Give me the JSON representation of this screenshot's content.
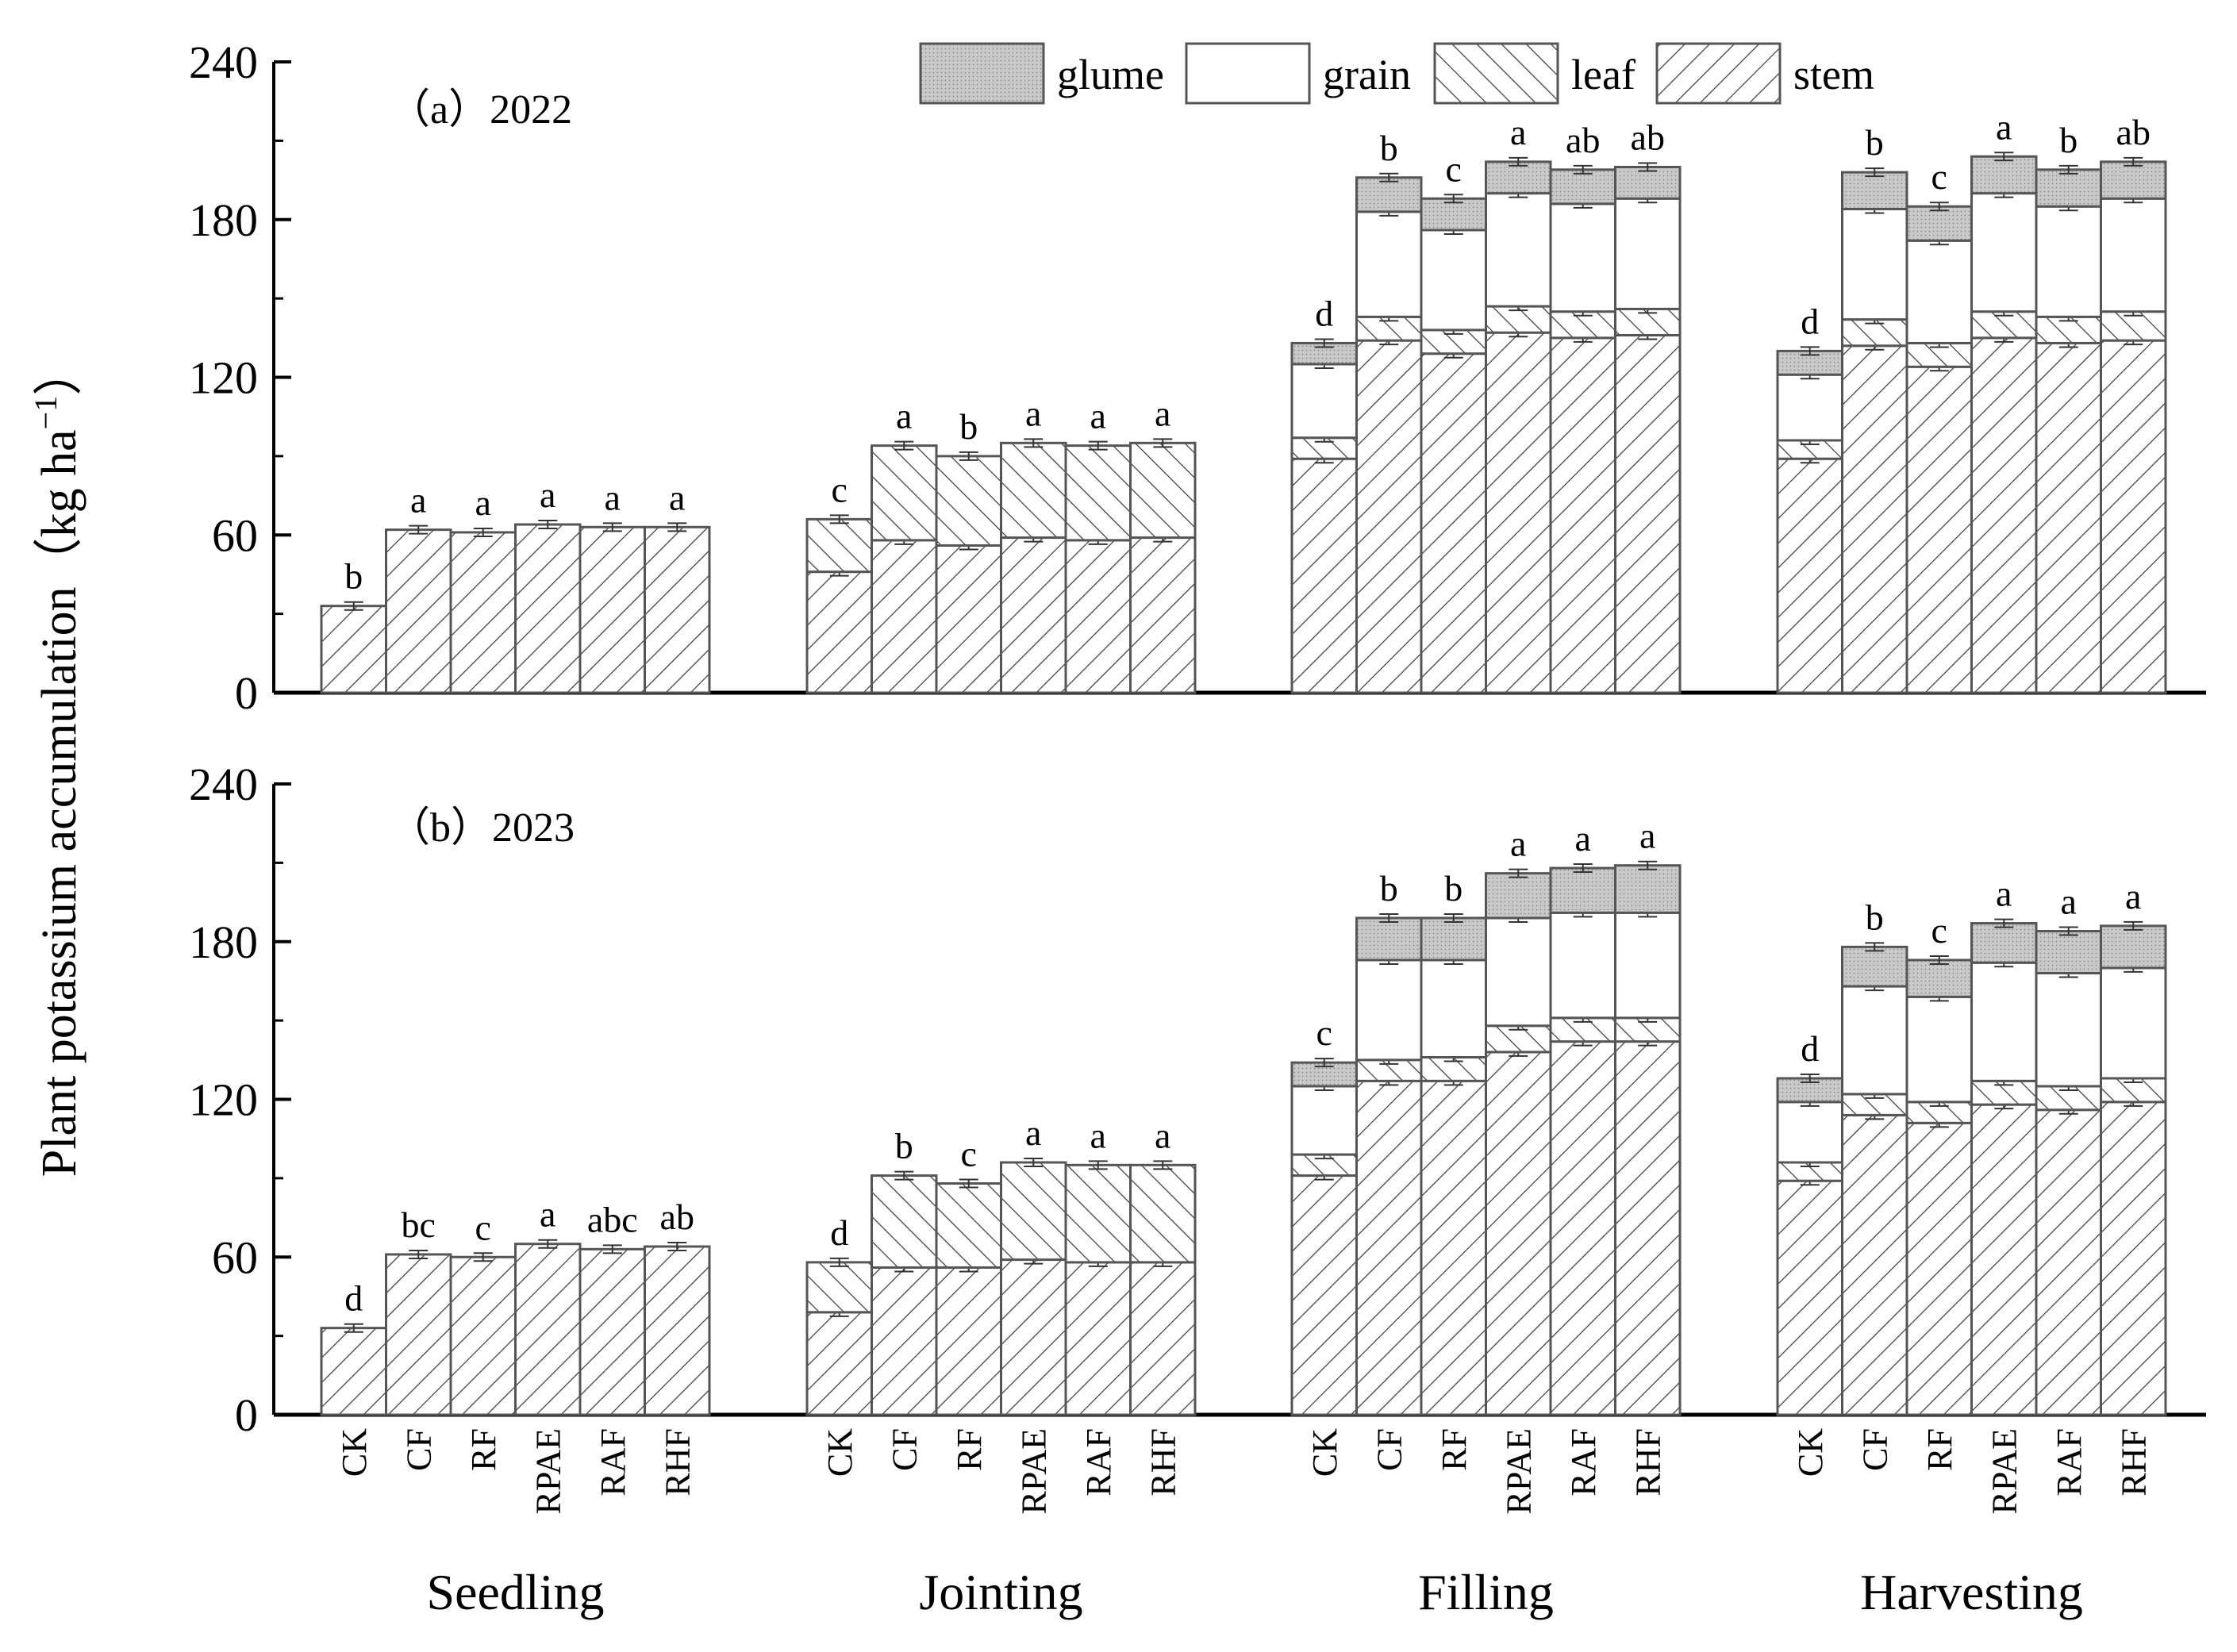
{
  "chart_data": {
    "type": "bar",
    "subtype": "stacked",
    "ylabel_main": "Plant potassium accumulation",
    "ylabel_unit_open": "（kg ha",
    "ylabel_unit_sup": "−1",
    "ylabel_unit_close": "）",
    "ylim": [
      0,
      240
    ],
    "yticks": [
      0,
      60,
      120,
      180,
      240
    ],
    "treatments": [
      "CK",
      "CF",
      "RF",
      "RPAE",
      "RAF",
      "RHF"
    ],
    "stages": [
      "Seedling",
      "Jointing",
      "Filling",
      "Harvesting"
    ],
    "legend": [
      {
        "name": "glume",
        "fill": "#c8c8c8",
        "pattern": "dotted"
      },
      {
        "name": "grain",
        "fill": "#ffffff",
        "pattern": "none"
      },
      {
        "name": "leaf",
        "fill": "#ffffff",
        "pattern": "hatch-back"
      },
      {
        "name": "stem",
        "fill": "#ffffff",
        "pattern": "hatch-forward"
      }
    ],
    "series_order": [
      "stem",
      "leaf",
      "grain",
      "glume"
    ],
    "panels": [
      {
        "label": "（a）2022",
        "groups": [
          {
            "stage": "Seedling",
            "stem": [
              33,
              62,
              61,
              64,
              63,
              63
            ],
            "leaf": [
              0,
              0,
              0,
              0,
              0,
              0
            ],
            "grain": [
              0,
              0,
              0,
              0,
              0,
              0
            ],
            "glume": [
              0,
              0,
              0,
              0,
              0,
              0
            ],
            "sig": [
              "b",
              "a",
              "a",
              "a",
              "a",
              "a"
            ]
          },
          {
            "stage": "Jointing",
            "stem": [
              46,
              58,
              56,
              59,
              58,
              59
            ],
            "leaf": [
              20,
              36,
              34,
              36,
              36,
              36
            ],
            "grain": [
              0,
              0,
              0,
              0,
              0,
              0
            ],
            "glume": [
              0,
              0,
              0,
              0,
              0,
              0
            ],
            "sig": [
              "c",
              "a",
              "b",
              "a",
              "a",
              "a"
            ]
          },
          {
            "stage": "Filling",
            "stem": [
              89,
              134,
              129,
              137,
              135,
              136
            ],
            "leaf": [
              8,
              9,
              9,
              10,
              10,
              10
            ],
            "grain": [
              28,
              40,
              38,
              43,
              41,
              42
            ],
            "glume": [
              8,
              13,
              12,
              12,
              13,
              12
            ],
            "sig": [
              "d",
              "b",
              "c",
              "a",
              "ab",
              "ab"
            ]
          },
          {
            "stage": "Harvesting",
            "stem": [
              89,
              132,
              124,
              135,
              133,
              134
            ],
            "leaf": [
              7,
              10,
              9,
              10,
              10,
              11
            ],
            "grain": [
              25,
              42,
              39,
              45,
              42,
              43
            ],
            "glume": [
              9,
              14,
              13,
              14,
              14,
              14
            ],
            "sig": [
              "d",
              "b",
              "c",
              "a",
              "b",
              "ab"
            ]
          }
        ]
      },
      {
        "label": "（b）2023",
        "groups": [
          {
            "stage": "Seedling",
            "stem": [
              33,
              61,
              60,
              65,
              63,
              64
            ],
            "leaf": [
              0,
              0,
              0,
              0,
              0,
              0
            ],
            "grain": [
              0,
              0,
              0,
              0,
              0,
              0
            ],
            "glume": [
              0,
              0,
              0,
              0,
              0,
              0
            ],
            "sig": [
              "d",
              "bc",
              "c",
              "a",
              "abc",
              "ab"
            ]
          },
          {
            "stage": "Jointing",
            "stem": [
              39,
              56,
              56,
              59,
              58,
              58
            ],
            "leaf": [
              19,
              35,
              32,
              37,
              37,
              37
            ],
            "grain": [
              0,
              0,
              0,
              0,
              0,
              0
            ],
            "glume": [
              0,
              0,
              0,
              0,
              0,
              0
            ],
            "sig": [
              "d",
              "b",
              "c",
              "a",
              "a",
              "a"
            ]
          },
          {
            "stage": "Filling",
            "stem": [
              91,
              127,
              127,
              138,
              142,
              142
            ],
            "leaf": [
              8,
              8,
              9,
              10,
              9,
              9
            ],
            "grain": [
              26,
              38,
              37,
              41,
              40,
              40
            ],
            "glume": [
              9,
              16,
              16,
              17,
              17,
              18
            ],
            "sig": [
              "c",
              "b",
              "b",
              "a",
              "a",
              "a"
            ]
          },
          {
            "stage": "Harvesting",
            "stem": [
              89,
              114,
              111,
              118,
              116,
              119
            ],
            "leaf": [
              7,
              8,
              8,
              9,
              9,
              9
            ],
            "grain": [
              23,
              41,
              40,
              45,
              43,
              42
            ],
            "glume": [
              9,
              15,
              14,
              15,
              16,
              16
            ],
            "sig": [
              "d",
              "b",
              "c",
              "a",
              "a",
              "a"
            ]
          }
        ]
      }
    ]
  }
}
